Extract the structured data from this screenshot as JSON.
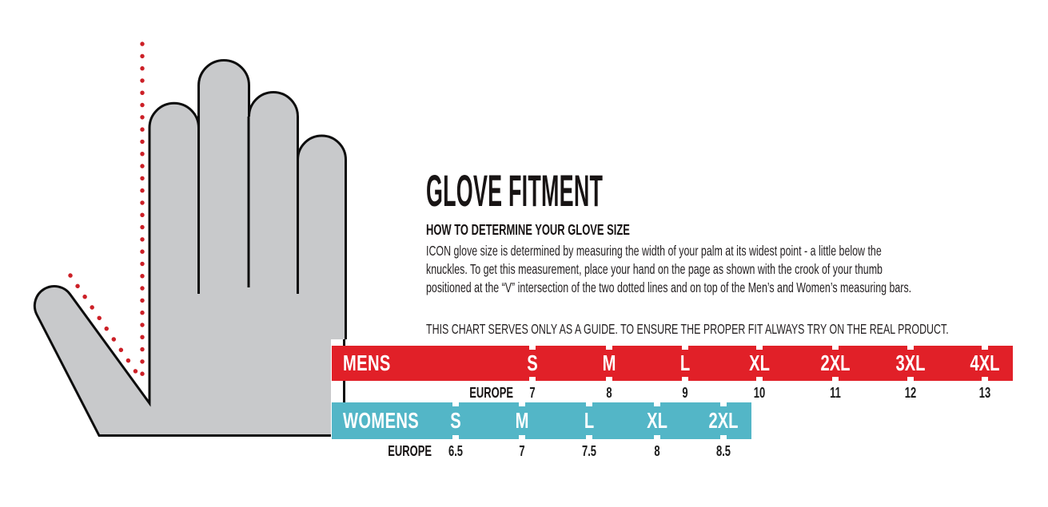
{
  "colors": {
    "mens_bar_red": "#E12028",
    "womens_bar_teal": "#53B6C7",
    "hand_gray": "#C8C9CB",
    "hand_outline": "#0D0D0D",
    "dotted_line_red": "#CC2027",
    "text_dark": "#231F20",
    "bar_text_white": "#FFFFFF"
  },
  "header": {
    "title": "GLOVE FITMENT",
    "subtitle": "HOW TO DETERMINE YOUR GLOVE SIZE",
    "body_lines": [
      "ICON glove size is determined by measuring the width of your palm at its widest point - a little below the",
      "knuckles. To get this measurement, place your hand on the page as shown with the crook of your thumb",
      "positioned at the “V” intersection of the two dotted lines and on top of the Men’s and Women’s measuring bars."
    ],
    "note": "THIS CHART SERVES ONLY AS A GUIDE. TO ENSURE THE PROPER FIT ALWAYS TRY ON THE REAL PRODUCT."
  },
  "mens": {
    "label": "MENS",
    "region_label": "EUROPE",
    "sizes": [
      "S",
      "M",
      "L",
      "XL",
      "2XL",
      "3XL",
      "4XL"
    ],
    "europe_values": [
      "7",
      "8",
      "9",
      "10",
      "11",
      "12",
      "13"
    ]
  },
  "womens": {
    "label": "WOMENS",
    "region_label": "EUROPE",
    "sizes": [
      "S",
      "M",
      "L",
      "XL",
      "2XL"
    ],
    "europe_values": [
      "6.5",
      "7",
      "7.5",
      "8",
      "8.5"
    ]
  },
  "hand_diagram": {
    "description": "gray left-hand outline with red dotted measuring lines meeting in a V at the thumb crook"
  }
}
